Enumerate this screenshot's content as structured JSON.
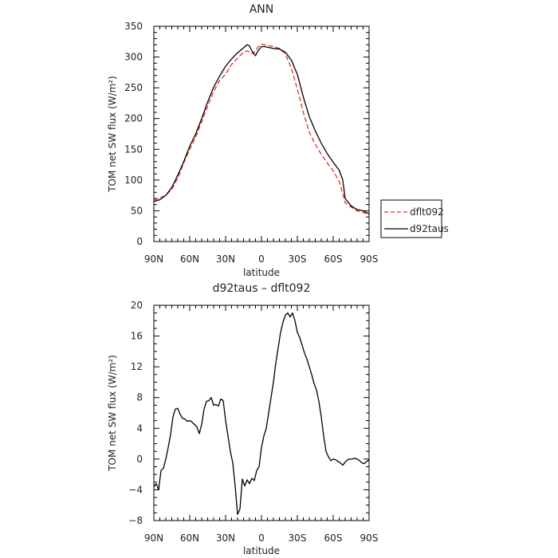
{
  "chart_data": [
    {
      "type": "line",
      "title": "ANN",
      "xlabel": "latitude",
      "ylabel": "TOM net SW flux (W/m²)",
      "xlim": [
        90,
        -90
      ],
      "ylim": [
        0,
        350
      ],
      "x_ticks": [
        90,
        60,
        30,
        0,
        -30,
        -60,
        -90
      ],
      "x_tick_labels": [
        "90N",
        "60N",
        "30N",
        "0",
        "30S",
        "60S",
        "90S"
      ],
      "y_ticks": [
        0,
        50,
        100,
        150,
        200,
        250,
        300,
        350
      ],
      "y_tick_labels": [
        "0",
        "50",
        "100",
        "150",
        "200",
        "250",
        "300",
        "350"
      ],
      "legend": "outside-right",
      "grid": false,
      "series": [
        {
          "name": "dflt092",
          "color": "#e0302a",
          "dash": "dashed",
          "x": [
            90,
            85,
            80,
            75,
            70,
            65,
            60,
            55,
            50,
            45,
            40,
            35,
            30,
            25,
            20,
            15,
            12,
            10,
            8,
            5,
            3,
            0,
            -3,
            -5,
            -10,
            -15,
            -20,
            -25,
            -30,
            -35,
            -40,
            -45,
            -50,
            -55,
            -60,
            -65,
            -68,
            -70,
            -75,
            -80,
            -85,
            -90
          ],
          "y": [
            67,
            71,
            75,
            85,
            103,
            128,
            150,
            170,
            195,
            220,
            244,
            262,
            272,
            288,
            298,
            308,
            310,
            308,
            305,
            310,
            316,
            321,
            320,
            319,
            317,
            314,
            305,
            282,
            248,
            210,
            178,
            158,
            142,
            128,
            115,
            98,
            78,
            63,
            56,
            50,
            47,
            45
          ]
        },
        {
          "name": "d92taus",
          "color": "#000000",
          "dash": "solid",
          "x": [
            90,
            85,
            80,
            75,
            70,
            65,
            60,
            55,
            50,
            45,
            40,
            35,
            30,
            25,
            20,
            15,
            12,
            10,
            8,
            5,
            3,
            0,
            -3,
            -5,
            -10,
            -15,
            -20,
            -25,
            -30,
            -35,
            -40,
            -45,
            -50,
            -55,
            -60,
            -65,
            -68,
            -70,
            -75,
            -80,
            -85,
            -90
          ],
          "y": [
            65,
            68,
            75,
            88,
            108,
            130,
            155,
            175,
            200,
            227,
            251,
            269,
            285,
            297,
            307,
            315,
            320,
            318,
            310,
            302,
            310,
            317,
            317,
            316,
            314,
            313,
            308,
            295,
            272,
            235,
            203,
            180,
            160,
            143,
            129,
            116,
            100,
            70,
            58,
            52,
            50,
            45
          ]
        }
      ]
    },
    {
      "type": "line",
      "title": "d92taus – dflt092",
      "xlabel": "latitude",
      "ylabel": "TOM net SW flux (W/m²)",
      "xlim": [
        90,
        -90
      ],
      "ylim": [
        -8,
        20
      ],
      "x_ticks": [
        90,
        60,
        30,
        0,
        -30,
        -60,
        -90
      ],
      "x_tick_labels": [
        "90N",
        "60N",
        "30N",
        "0",
        "30S",
        "60S",
        "90S"
      ],
      "y_ticks": [
        -8,
        -4,
        0,
        4,
        8,
        12,
        16,
        20
      ],
      "y_tick_labels": [
        "−8",
        "−4",
        "0",
        "4",
        "8",
        "12",
        "16",
        "20"
      ],
      "grid": false,
      "series": [
        {
          "color": "#000000",
          "dash": "solid",
          "x": [
            90,
            88,
            86,
            84,
            82,
            80,
            78,
            76,
            74,
            72,
            70,
            68,
            66,
            64,
            62,
            60,
            58,
            56,
            54,
            52,
            50,
            48,
            46,
            44,
            42,
            40,
            38,
            36,
            34,
            32,
            30,
            28,
            26,
            24,
            22,
            20,
            18,
            16,
            14,
            12,
            10,
            8,
            6,
            4,
            2,
            0,
            -2,
            -4,
            -6,
            -8,
            -10,
            -12,
            -14,
            -16,
            -18,
            -20,
            -22,
            -24,
            -26,
            -28,
            -30,
            -32,
            -34,
            -36,
            -38,
            -40,
            -42,
            -44,
            -46,
            -48,
            -50,
            -52,
            -54,
            -56,
            -58,
            -60,
            -62,
            -64,
            -66,
            -68,
            -70,
            -72,
            -74,
            -76,
            -78,
            -80,
            -82,
            -84,
            -86,
            -88,
            -90
          ],
          "y": [
            -3.6,
            -3.2,
            -4.0,
            -1.5,
            -1.2,
            0.0,
            1.5,
            3.2,
            5.5,
            6.5,
            6.6,
            5.8,
            5.3,
            5.2,
            4.9,
            5.0,
            4.8,
            4.5,
            4.2,
            3.3,
            4.5,
            6.5,
            7.5,
            7.6,
            8.0,
            7.0,
            7.1,
            6.9,
            7.8,
            7.6,
            5.0,
            3.0,
            1.0,
            -0.5,
            -3.5,
            -7.2,
            -6.5,
            -2.6,
            -3.5,
            -2.7,
            -3.2,
            -2.5,
            -2.8,
            -1.5,
            -1.0,
            1.5,
            3.0,
            4.0,
            6.0,
            8.0,
            10.0,
            12.5,
            14.5,
            16.5,
            17.8,
            18.7,
            19.0,
            18.5,
            19.0,
            18.0,
            16.5,
            15.8,
            14.8,
            13.8,
            13.0,
            12.0,
            11.0,
            9.8,
            9.0,
            7.5,
            5.5,
            3.0,
            1.0,
            0.3,
            -0.2,
            0.0,
            -0.1,
            -0.3,
            -0.5,
            -0.8,
            -0.4,
            -0.1,
            0.0,
            0.0,
            0.1,
            0.0,
            -0.2,
            -0.5,
            -0.6,
            -0.3,
            -0.1
          ]
        }
      ]
    }
  ]
}
